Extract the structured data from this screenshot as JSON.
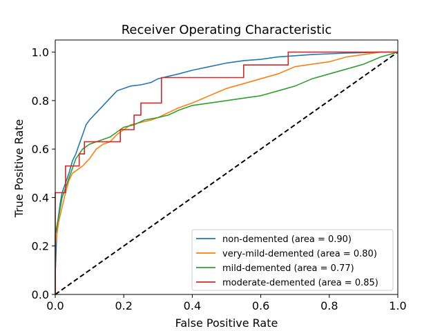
{
  "chart_data": {
    "type": "line",
    "title": "Receiver Operating Characteristic",
    "xlabel": "False Positive Rate",
    "ylabel": "True Positive Rate",
    "xlim": [
      0,
      1
    ],
    "ylim": [
      0,
      1.05
    ],
    "xticks": [
      "0.0",
      "0.2",
      "0.4",
      "0.6",
      "0.8",
      "1.0"
    ],
    "yticks": [
      "0.0",
      "0.2",
      "0.4",
      "0.6",
      "0.8",
      "1.0"
    ],
    "grid": false,
    "legend_position": "lower-right",
    "diagonal": {
      "color": "#000000",
      "style": "dashed",
      "x": [
        0,
        1
      ],
      "y": [
        0,
        1
      ]
    },
    "series": [
      {
        "name": "non-demented (area = 0.90)",
        "color": "#1f77b4",
        "x": [
          0,
          0,
          0.005,
          0.01,
          0.015,
          0.02,
          0.03,
          0.04,
          0.05,
          0.06,
          0.07,
          0.08,
          0.09,
          0.1,
          0.12,
          0.14,
          0.16,
          0.18,
          0.2,
          0.22,
          0.25,
          0.28,
          0.3,
          0.33,
          0.36,
          0.4,
          0.45,
          0.5,
          0.55,
          0.6,
          0.65,
          0.7,
          0.75,
          0.8,
          0.85,
          0.9,
          0.95,
          1.0
        ],
        "y": [
          0,
          0.08,
          0.28,
          0.33,
          0.38,
          0.42,
          0.46,
          0.5,
          0.55,
          0.58,
          0.62,
          0.66,
          0.7,
          0.72,
          0.75,
          0.78,
          0.81,
          0.84,
          0.85,
          0.86,
          0.865,
          0.875,
          0.89,
          0.9,
          0.91,
          0.925,
          0.94,
          0.955,
          0.965,
          0.97,
          0.98,
          0.985,
          0.99,
          0.993,
          0.996,
          0.998,
          1.0,
          1.0
        ]
      },
      {
        "name": "very-mild-demented (area = 0.80)",
        "color": "#ff7f0e",
        "x": [
          0,
          0,
          0.01,
          0.02,
          0.03,
          0.04,
          0.05,
          0.06,
          0.08,
          0.1,
          0.12,
          0.14,
          0.16,
          0.18,
          0.2,
          0.22,
          0.25,
          0.28,
          0.3,
          0.33,
          0.36,
          0.4,
          0.45,
          0.5,
          0.55,
          0.6,
          0.65,
          0.7,
          0.75,
          0.8,
          0.85,
          0.9,
          0.95,
          1.0
        ],
        "y": [
          0,
          0.2,
          0.3,
          0.36,
          0.42,
          0.47,
          0.5,
          0.51,
          0.53,
          0.56,
          0.6,
          0.62,
          0.63,
          0.66,
          0.68,
          0.7,
          0.71,
          0.72,
          0.73,
          0.75,
          0.77,
          0.79,
          0.82,
          0.85,
          0.87,
          0.89,
          0.91,
          0.94,
          0.95,
          0.96,
          0.98,
          0.99,
          1.0,
          1.0
        ]
      },
      {
        "name": "mild-demented (area = 0.77)",
        "color": "#2ca02c",
        "x": [
          0,
          0,
          0.01,
          0.02,
          0.03,
          0.04,
          0.05,
          0.06,
          0.08,
          0.1,
          0.12,
          0.14,
          0.16,
          0.18,
          0.2,
          0.23,
          0.26,
          0.3,
          0.33,
          0.36,
          0.4,
          0.45,
          0.5,
          0.55,
          0.6,
          0.65,
          0.7,
          0.75,
          0.8,
          0.85,
          0.9,
          0.95,
          1.0
        ],
        "y": [
          0,
          0.25,
          0.32,
          0.4,
          0.44,
          0.48,
          0.52,
          0.56,
          0.6,
          0.62,
          0.63,
          0.64,
          0.65,
          0.67,
          0.69,
          0.7,
          0.72,
          0.73,
          0.74,
          0.76,
          0.78,
          0.79,
          0.8,
          0.81,
          0.82,
          0.84,
          0.86,
          0.89,
          0.91,
          0.93,
          0.95,
          0.98,
          1.0
        ]
      },
      {
        "name": "moderate-demented (area = 0.85)",
        "color": "#d62728",
        "x": [
          0,
          0,
          0.03,
          0.03,
          0.07,
          0.07,
          0.085,
          0.085,
          0.19,
          0.19,
          0.23,
          0.23,
          0.25,
          0.25,
          0.31,
          0.31,
          0.55,
          0.55,
          0.68,
          0.68,
          1.0
        ],
        "y": [
          0,
          0.42,
          0.42,
          0.53,
          0.53,
          0.58,
          0.58,
          0.63,
          0.63,
          0.68,
          0.68,
          0.74,
          0.74,
          0.79,
          0.79,
          0.895,
          0.895,
          0.947,
          0.947,
          1.0,
          1.0
        ]
      }
    ]
  }
}
